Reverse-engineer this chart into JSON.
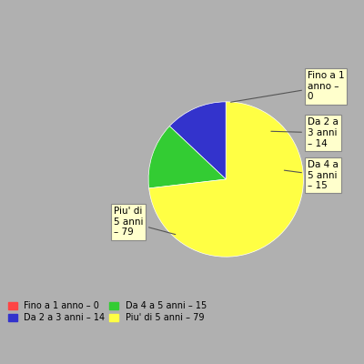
{
  "labels": [
    "Fino a 1 anno",
    "Da 2 a 3 anni",
    "Da 4 a 5 anni",
    "Piu' di 5 anni"
  ],
  "values": [
    0.001,
    14,
    15,
    79
  ],
  "colors": [
    "#ff4444",
    "#3333cc",
    "#33cc33",
    "#ffff44"
  ],
  "background_color": "#b0b0b0",
  "annotation_labels": [
    "Fino a 1\nanno –\n0",
    "Da 2 a\n3 anni\n– 14",
    "Da 4 a\n5 anni\n– 15",
    "Piu' di\n5 anni\n– 79"
  ],
  "legend_labels": [
    "Fino a 1 anno – 0",
    "Da 2 a 3 anni – 14",
    "Da 4 a 5 anni – 15",
    "Piu' di 5 anni – 79"
  ],
  "legend_colors": [
    "#ff4444",
    "#3333cc",
    "#33cc33",
    "#ffff44"
  ],
  "startangle": 90
}
